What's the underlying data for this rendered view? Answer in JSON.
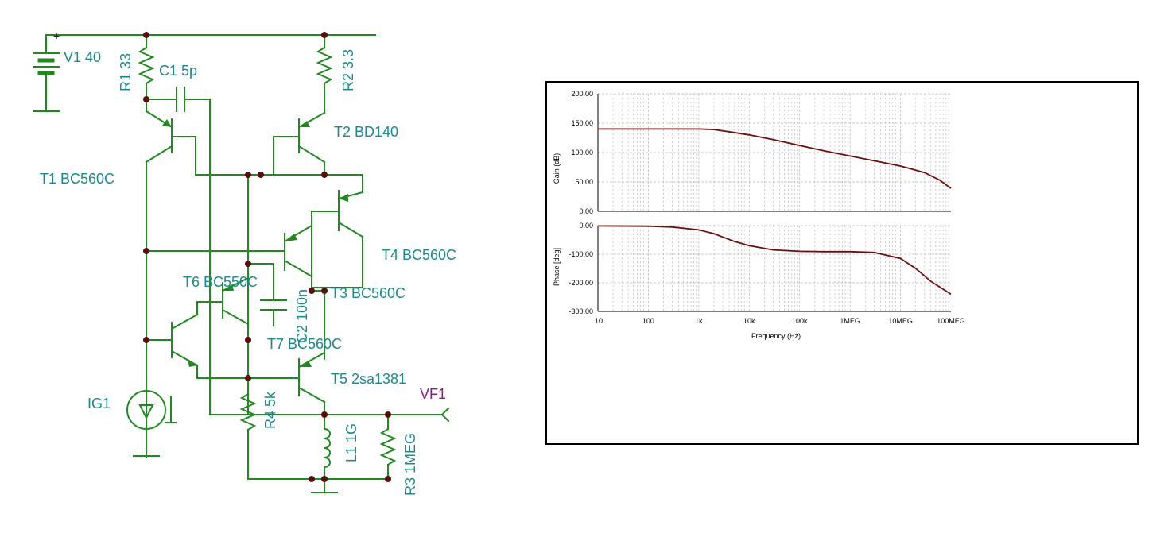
{
  "schematic": {
    "labels": {
      "V1": "V1 40",
      "R1": "R1 33",
      "C1": "C1 5p",
      "R2": "R2 3.3",
      "T2": "T2 BD140",
      "T1": "T1 BC560C",
      "T4": "T4 BC560C",
      "T6": "T6 BC550C",
      "C2": "C2 100n",
      "T3": "T3 BC560C",
      "T7": "T7 BC560C",
      "T5": "T5 2sa1381",
      "IG1": "IG1",
      "R4": "R4 5k",
      "L1": "L1 1G",
      "R3": "R3 1MEG",
      "VF1": "VF1",
      "plus": "+"
    },
    "colors": {
      "wire": "#1f8a1f",
      "label": "#1a8a8c",
      "node": "#5a0f0f",
      "probe": "#8b1a8b"
    }
  },
  "chart_data": [
    {
      "type": "line",
      "ylabel": "Gain (dB)",
      "xscale": "log",
      "xlim": [
        10,
        100000000
      ],
      "ylim": [
        0,
        200
      ],
      "yticks": [
        "200.00",
        "150.00",
        "100.00",
        "50.00",
        "0.00"
      ],
      "grid": true,
      "color": "#6b0f0f",
      "x": [
        10,
        100,
        1000,
        2000,
        5000,
        10000,
        30000,
        100000,
        300000,
        1000000,
        3000000,
        10000000,
        30000000,
        60000000,
        100000000
      ],
      "values": [
        140,
        140,
        140,
        139,
        134,
        130,
        122,
        112,
        103,
        94,
        86,
        77,
        66,
        53,
        39
      ]
    },
    {
      "type": "line",
      "ylabel": "Phase [deg]",
      "xlabel": "Frequency (Hz)",
      "xscale": "log",
      "xlim": [
        10,
        100000000
      ],
      "ylim": [
        -300,
        0
      ],
      "yticks": [
        "0.00",
        "-100.00",
        "-200.00",
        "-300.00"
      ],
      "xticks": [
        "10",
        "100",
        "1k",
        "10k",
        "100k",
        "1MEG",
        "10MEG",
        "100MEG"
      ],
      "grid": true,
      "color": "#6b0f0f",
      "x": [
        10,
        100,
        300,
        1000,
        2000,
        5000,
        10000,
        30000,
        100000,
        300000,
        1000000,
        3000000,
        10000000,
        20000000,
        40000000,
        100000000
      ],
      "values": [
        -1,
        -2,
        -5,
        -15,
        -28,
        -55,
        -70,
        -85,
        -90,
        -91,
        -91,
        -94,
        -115,
        -150,
        -195,
        -240
      ]
    }
  ]
}
